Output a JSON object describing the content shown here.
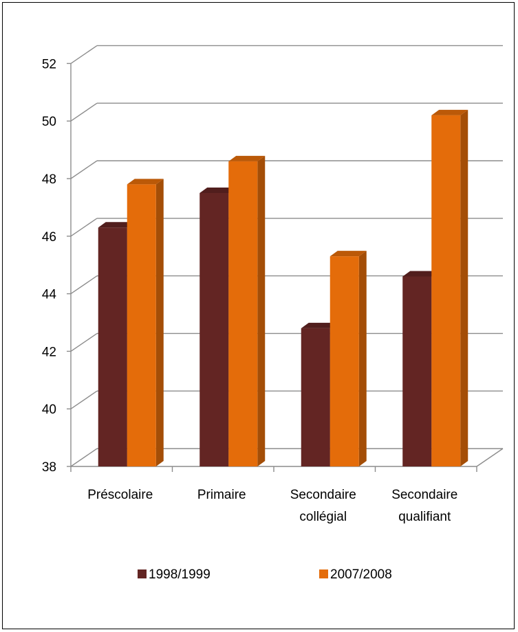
{
  "chart_data": {
    "type": "bar",
    "style": "3d-clustered-column",
    "categories": [
      [
        "Préscolaire"
      ],
      [
        "Primaire"
      ],
      [
        "Secondaire",
        "collégial"
      ],
      [
        "Secondaire",
        "qualifiant"
      ]
    ],
    "series": [
      {
        "name": "1998/1999",
        "color": "#632523",
        "values": [
          46.3,
          47.5,
          42.8,
          44.6
        ]
      },
      {
        "name": "2007/2008",
        "color": "#E46C0A",
        "values": [
          47.8,
          48.6,
          45.3,
          50.2
        ]
      }
    ],
    "ylim": [
      38,
      52
    ],
    "yticks": [
      "38",
      "40",
      "42",
      "44",
      "46",
      "48",
      "50",
      "52"
    ],
    "grid": true,
    "legend_position": "bottom"
  }
}
